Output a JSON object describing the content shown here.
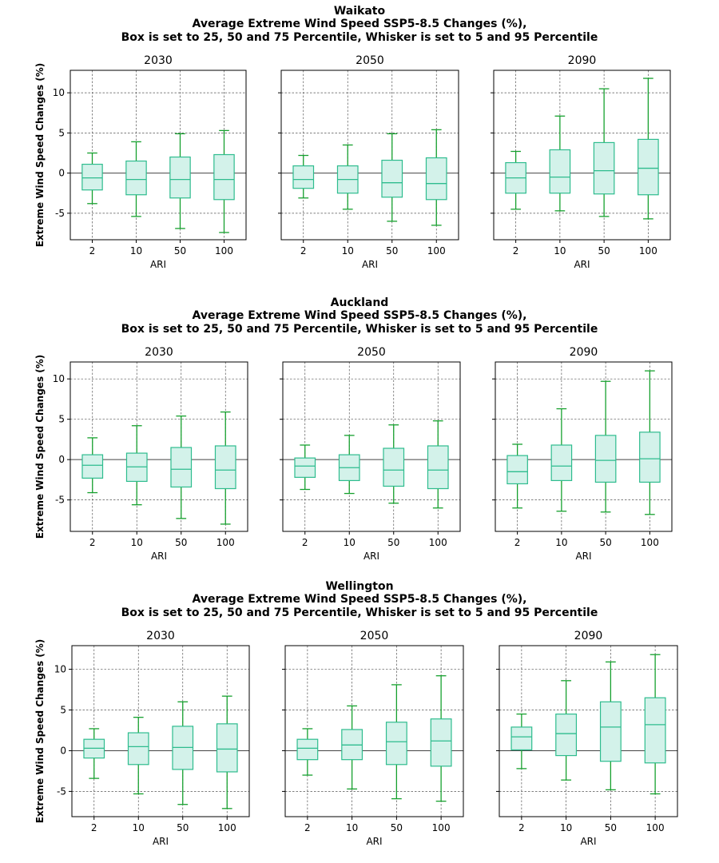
{
  "chart_data": [
    {
      "type": "boxplot",
      "region": "Waikato",
      "title_lines": [
        "Waikato",
        "Average Extreme Wind Speed SSP5-8.5 Changes (%),",
        "Box is set to 25, 50 and 75 Percentile, Whisker is set to 5 and 95 Percentile"
      ],
      "ylabel": "Extreme Wind Speed Changes (%)",
      "xlabel": "ARI",
      "categories": [
        "2",
        "10",
        "50",
        "100"
      ],
      "ylim": [
        -8.3,
        12.8
      ],
      "yticks": [
        -5,
        0,
        5,
        10
      ],
      "panels": [
        {
          "name": "2030",
          "boxes": [
            {
              "p5": -3.8,
              "q1": -2.1,
              "median": -0.6,
              "q3": 1.1,
              "p95": 2.5
            },
            {
              "p5": -5.4,
              "q1": -2.7,
              "median": -0.8,
              "q3": 1.5,
              "p95": 3.9
            },
            {
              "p5": -6.9,
              "q1": -3.1,
              "median": -0.8,
              "q3": 2.0,
              "p95": 4.9
            },
            {
              "p5": -7.4,
              "q1": -3.3,
              "median": -0.8,
              "q3": 2.3,
              "p95": 5.3
            }
          ]
        },
        {
          "name": "2050",
          "boxes": [
            {
              "p5": -3.1,
              "q1": -1.9,
              "median": -0.8,
              "q3": 0.9,
              "p95": 2.2
            },
            {
              "p5": -4.5,
              "q1": -2.5,
              "median": -0.8,
              "q3": 0.9,
              "p95": 3.5
            },
            {
              "p5": -6.0,
              "q1": -3.0,
              "median": -1.2,
              "q3": 1.6,
              "p95": 4.9
            },
            {
              "p5": -6.5,
              "q1": -3.3,
              "median": -1.3,
              "q3": 1.9,
              "p95": 5.4
            }
          ]
        },
        {
          "name": "2090",
          "boxes": [
            {
              "p5": -4.5,
              "q1": -2.5,
              "median": -0.6,
              "q3": 1.3,
              "p95": 2.7
            },
            {
              "p5": -4.7,
              "q1": -2.5,
              "median": -0.5,
              "q3": 2.9,
              "p95": 7.1
            },
            {
              "p5": -5.4,
              "q1": -2.6,
              "median": 0.3,
              "q3": 3.8,
              "p95": 10.5
            },
            {
              "p5": -5.7,
              "q1": -2.7,
              "median": 0.6,
              "q3": 4.2,
              "p95": 11.8
            }
          ]
        }
      ]
    },
    {
      "type": "boxplot",
      "region": "Auckland",
      "title_lines": [
        "Auckland",
        "Average Extreme Wind Speed SSP5-8.5 Changes (%),",
        "Box is set to 25, 50 and 75 Percentile, Whisker is set to 5 and 95 Percentile"
      ],
      "ylabel": "Extreme Wind Speed Changes (%)",
      "xlabel": "ARI",
      "categories": [
        "2",
        "10",
        "50",
        "100"
      ],
      "ylim": [
        -8.9,
        12.1
      ],
      "yticks": [
        -5,
        0,
        5,
        10
      ],
      "panels": [
        {
          "name": "2030",
          "boxes": [
            {
              "p5": -4.1,
              "q1": -2.3,
              "median": -0.7,
              "q3": 0.6,
              "p95": 2.7
            },
            {
              "p5": -5.6,
              "q1": -2.7,
              "median": -0.9,
              "q3": 0.8,
              "p95": 4.2
            },
            {
              "p5": -7.3,
              "q1": -3.4,
              "median": -1.2,
              "q3": 1.5,
              "p95": 5.4
            },
            {
              "p5": -8.0,
              "q1": -3.6,
              "median": -1.3,
              "q3": 1.7,
              "p95": 5.9
            }
          ]
        },
        {
          "name": "2050",
          "boxes": [
            {
              "p5": -3.7,
              "q1": -2.2,
              "median": -0.8,
              "q3": 0.2,
              "p95": 1.8
            },
            {
              "p5": -4.2,
              "q1": -2.6,
              "median": -1.0,
              "q3": 0.6,
              "p95": 3.0
            },
            {
              "p5": -5.4,
              "q1": -3.3,
              "median": -1.3,
              "q3": 1.4,
              "p95": 4.3
            },
            {
              "p5": -6.0,
              "q1": -3.6,
              "median": -1.3,
              "q3": 1.7,
              "p95": 4.8
            }
          ]
        },
        {
          "name": "2090",
          "boxes": [
            {
              "p5": -6.0,
              "q1": -3.0,
              "median": -1.5,
              "q3": 0.5,
              "p95": 1.9
            },
            {
              "p5": -6.4,
              "q1": -2.6,
              "median": -0.8,
              "q3": 1.8,
              "p95": 6.3
            },
            {
              "p5": -6.5,
              "q1": -2.8,
              "median": -0.1,
              "q3": 3.0,
              "p95": 9.7
            },
            {
              "p5": -6.8,
              "q1": -2.8,
              "median": 0.1,
              "q3": 3.4,
              "p95": 11.0
            }
          ]
        }
      ]
    },
    {
      "type": "boxplot",
      "region": "Wellington",
      "title_lines": [
        "Wellington",
        "Average Extreme Wind Speed SSP5-8.5 Changes (%),",
        "Box is set to 25, 50 and 75 Percentile, Whisker is set to 5 and 95 Percentile"
      ],
      "ylabel": "Extreme Wind Speed Changes (%)",
      "xlabel": "ARI",
      "categories": [
        "2",
        "10",
        "50",
        "100"
      ],
      "ylim": [
        -8.1,
        12.9
      ],
      "yticks": [
        -5,
        0,
        5,
        10
      ],
      "panels": [
        {
          "name": "2030",
          "boxes": [
            {
              "p5": -3.4,
              "q1": -0.9,
              "median": 0.3,
              "q3": 1.4,
              "p95": 2.7
            },
            {
              "p5": -5.3,
              "q1": -1.7,
              "median": 0.5,
              "q3": 2.2,
              "p95": 4.1
            },
            {
              "p5": -6.6,
              "q1": -2.3,
              "median": 0.4,
              "q3": 3.0,
              "p95": 6.0
            },
            {
              "p5": -7.1,
              "q1": -2.6,
              "median": 0.2,
              "q3": 3.3,
              "p95": 6.7
            }
          ]
        },
        {
          "name": "2050",
          "boxes": [
            {
              "p5": -3.0,
              "q1": -1.1,
              "median": 0.3,
              "q3": 1.4,
              "p95": 2.7
            },
            {
              "p5": -4.7,
              "q1": -1.1,
              "median": 0.7,
              "q3": 2.6,
              "p95": 5.5
            },
            {
              "p5": -5.9,
              "q1": -1.7,
              "median": 1.1,
              "q3": 3.5,
              "p95": 8.1
            },
            {
              "p5": -6.2,
              "q1": -1.9,
              "median": 1.2,
              "q3": 3.9,
              "p95": 9.2
            }
          ]
        },
        {
          "name": "2090",
          "boxes": [
            {
              "p5": -2.2,
              "q1": 0.1,
              "median": 1.7,
              "q3": 2.9,
              "p95": 4.5
            },
            {
              "p5": -3.6,
              "q1": -0.6,
              "median": 2.1,
              "q3": 4.5,
              "p95": 8.6
            },
            {
              "p5": -4.8,
              "q1": -1.3,
              "median": 2.9,
              "q3": 6.0,
              "p95": 10.9
            },
            {
              "p5": -5.3,
              "q1": -1.5,
              "median": 3.2,
              "q3": 6.5,
              "p95": 11.8
            }
          ]
        }
      ]
    }
  ],
  "colors": {
    "box_fill": "#d3f2ea",
    "box_edge": "#2ebc8e",
    "median": "#2ebc8e",
    "whisker": "#16a02e",
    "zero_line": "#444444",
    "grid": "#555555"
  }
}
